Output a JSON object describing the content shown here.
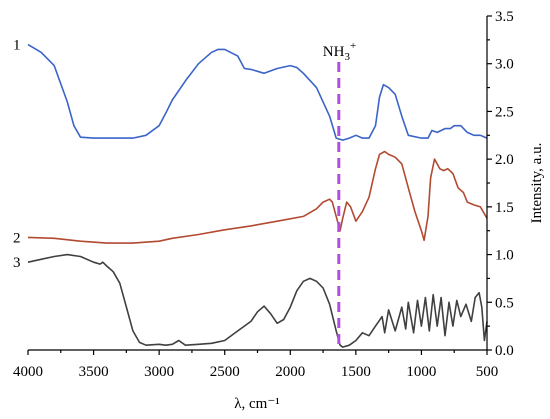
{
  "chart_data": {
    "type": "line",
    "title": "",
    "xlabel": "λ, cm⁻¹",
    "ylabel": "Intensity, a.u.",
    "xlim": [
      4000,
      500
    ],
    "ylim": [
      0.0,
      3.5
    ],
    "x_ticks": [
      "4000",
      "3500",
      "3000",
      "2500",
      "2000",
      "1500",
      "1000",
      "500"
    ],
    "y_ticks": [
      "0.0",
      "0.5",
      "1.0",
      "1.5",
      "2.0",
      "2.5",
      "3.0",
      "3.5"
    ],
    "grid": false,
    "legend": "none",
    "series": [
      {
        "name": "1",
        "color": "#3a64c8",
        "points": [
          [
            4000,
            3.2
          ],
          [
            3900,
            3.12
          ],
          [
            3800,
            2.98
          ],
          [
            3700,
            2.6
          ],
          [
            3650,
            2.35
          ],
          [
            3600,
            2.23
          ],
          [
            3500,
            2.22
          ],
          [
            3400,
            2.22
          ],
          [
            3300,
            2.22
          ],
          [
            3200,
            2.22
          ],
          [
            3100,
            2.25
          ],
          [
            3000,
            2.35
          ],
          [
            2950,
            2.48
          ],
          [
            2900,
            2.62
          ],
          [
            2800,
            2.82
          ],
          [
            2700,
            3.0
          ],
          [
            2600,
            3.12
          ],
          [
            2550,
            3.15
          ],
          [
            2500,
            3.15
          ],
          [
            2400,
            3.08
          ],
          [
            2350,
            2.95
          ],
          [
            2300,
            2.94
          ],
          [
            2250,
            2.92
          ],
          [
            2200,
            2.9
          ],
          [
            2100,
            2.95
          ],
          [
            2000,
            2.98
          ],
          [
            1950,
            2.96
          ],
          [
            1900,
            2.9
          ],
          [
            1800,
            2.75
          ],
          [
            1700,
            2.45
          ],
          [
            1650,
            2.22
          ],
          [
            1600,
            2.2
          ],
          [
            1550,
            2.22
          ],
          [
            1500,
            2.25
          ],
          [
            1450,
            2.22
          ],
          [
            1400,
            2.22
          ],
          [
            1350,
            2.35
          ],
          [
            1320,
            2.65
          ],
          [
            1290,
            2.78
          ],
          [
            1250,
            2.75
          ],
          [
            1200,
            2.68
          ],
          [
            1150,
            2.45
          ],
          [
            1100,
            2.25
          ],
          [
            1000,
            2.22
          ],
          [
            950,
            2.22
          ],
          [
            920,
            2.3
          ],
          [
            880,
            2.28
          ],
          [
            820,
            2.32
          ],
          [
            780,
            2.32
          ],
          [
            750,
            2.35
          ],
          [
            700,
            2.35
          ],
          [
            650,
            2.28
          ],
          [
            600,
            2.25
          ],
          [
            550,
            2.25
          ],
          [
            500,
            2.22
          ]
        ]
      },
      {
        "name": "2",
        "color": "#b24a30",
        "points": [
          [
            4000,
            1.18
          ],
          [
            3800,
            1.17
          ],
          [
            3600,
            1.14
          ],
          [
            3400,
            1.12
          ],
          [
            3200,
            1.12
          ],
          [
            3000,
            1.14
          ],
          [
            2900,
            1.17
          ],
          [
            2700,
            1.21
          ],
          [
            2500,
            1.26
          ],
          [
            2300,
            1.3
          ],
          [
            2100,
            1.35
          ],
          [
            1900,
            1.4
          ],
          [
            1800,
            1.48
          ],
          [
            1750,
            1.55
          ],
          [
            1700,
            1.58
          ],
          [
            1680,
            1.55
          ],
          [
            1650,
            1.4
          ],
          [
            1620,
            1.25
          ],
          [
            1600,
            1.38
          ],
          [
            1570,
            1.55
          ],
          [
            1540,
            1.5
          ],
          [
            1500,
            1.35
          ],
          [
            1450,
            1.45
          ],
          [
            1400,
            1.6
          ],
          [
            1350,
            1.9
          ],
          [
            1320,
            2.05
          ],
          [
            1280,
            2.08
          ],
          [
            1250,
            2.05
          ],
          [
            1200,
            2.02
          ],
          [
            1150,
            1.95
          ],
          [
            1100,
            1.7
          ],
          [
            1050,
            1.45
          ],
          [
            1000,
            1.25
          ],
          [
            980,
            1.15
          ],
          [
            950,
            1.4
          ],
          [
            930,
            1.8
          ],
          [
            900,
            2.0
          ],
          [
            880,
            1.95
          ],
          [
            860,
            1.9
          ],
          [
            830,
            1.88
          ],
          [
            800,
            1.9
          ],
          [
            760,
            1.85
          ],
          [
            720,
            1.7
          ],
          [
            680,
            1.65
          ],
          [
            650,
            1.55
          ],
          [
            600,
            1.52
          ],
          [
            550,
            1.5
          ],
          [
            500,
            1.38
          ]
        ]
      },
      {
        "name": "3",
        "color": "#404040",
        "points": [
          [
            4000,
            0.92
          ],
          [
            3900,
            0.95
          ],
          [
            3800,
            0.98
          ],
          [
            3700,
            1.0
          ],
          [
            3600,
            0.98
          ],
          [
            3500,
            0.92
          ],
          [
            3450,
            0.9
          ],
          [
            3430,
            0.92
          ],
          [
            3400,
            0.88
          ],
          [
            3350,
            0.82
          ],
          [
            3300,
            0.7
          ],
          [
            3250,
            0.45
          ],
          [
            3200,
            0.2
          ],
          [
            3150,
            0.08
          ],
          [
            3100,
            0.05
          ],
          [
            3000,
            0.06
          ],
          [
            2950,
            0.05
          ],
          [
            2900,
            0.06
          ],
          [
            2850,
            0.1
          ],
          [
            2800,
            0.05
          ],
          [
            2700,
            0.06
          ],
          [
            2600,
            0.07
          ],
          [
            2500,
            0.1
          ],
          [
            2400,
            0.2
          ],
          [
            2300,
            0.3
          ],
          [
            2250,
            0.4
          ],
          [
            2200,
            0.46
          ],
          [
            2150,
            0.38
          ],
          [
            2100,
            0.28
          ],
          [
            2050,
            0.32
          ],
          [
            2000,
            0.45
          ],
          [
            1950,
            0.62
          ],
          [
            1900,
            0.72
          ],
          [
            1850,
            0.75
          ],
          [
            1800,
            0.72
          ],
          [
            1750,
            0.65
          ],
          [
            1700,
            0.48
          ],
          [
            1650,
            0.2
          ],
          [
            1620,
            0.05
          ],
          [
            1600,
            0.03
          ],
          [
            1550,
            0.05
          ],
          [
            1500,
            0.1
          ],
          [
            1450,
            0.18
          ],
          [
            1400,
            0.15
          ],
          [
            1350,
            0.25
          ],
          [
            1300,
            0.35
          ],
          [
            1280,
            0.18
          ],
          [
            1250,
            0.42
          ],
          [
            1200,
            0.2
          ],
          [
            1150,
            0.45
          ],
          [
            1120,
            0.22
          ],
          [
            1100,
            0.5
          ],
          [
            1060,
            0.18
          ],
          [
            1030,
            0.52
          ],
          [
            1000,
            0.25
          ],
          [
            970,
            0.55
          ],
          [
            940,
            0.2
          ],
          [
            910,
            0.58
          ],
          [
            880,
            0.25
          ],
          [
            850,
            0.55
          ],
          [
            820,
            0.15
          ],
          [
            790,
            0.5
          ],
          [
            760,
            0.25
          ],
          [
            730,
            0.52
          ],
          [
            700,
            0.35
          ],
          [
            660,
            0.48
          ],
          [
            620,
            0.3
          ],
          [
            590,
            0.55
          ],
          [
            560,
            0.6
          ],
          [
            540,
            0.45
          ],
          [
            520,
            0.1
          ],
          [
            500,
            0.3
          ]
        ]
      }
    ],
    "annotations": [
      {
        "id": "nh3",
        "text": "NH",
        "sub": "3",
        "sup": "+",
        "x": 1630
      }
    ],
    "marker_line": {
      "x": 1630,
      "color": "#b34ddf",
      "style": "dashed"
    }
  }
}
